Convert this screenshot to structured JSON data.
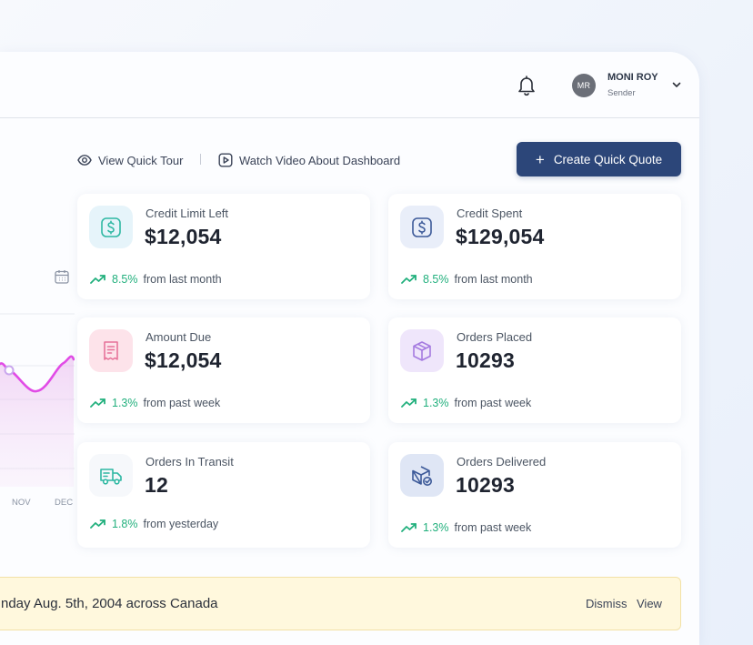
{
  "header": {
    "user": {
      "initials": "MR",
      "name": "MONI ROY",
      "role": "Sender"
    },
    "icons": {
      "notifications": "bell-icon",
      "user_menu": "chevron-down-icon"
    }
  },
  "actions": {
    "view_tour": "View Quick Tour",
    "watch_video": "Watch Video About Dashboard",
    "create_quote": "Create Quick Quote"
  },
  "cards": [
    {
      "label": "Credit Limit Left",
      "value": "$12,054",
      "pct": "8.5%",
      "period": "from last month",
      "icon": "dollar-icon"
    },
    {
      "label": "Credit Spent",
      "value": "$129,054",
      "pct": "8.5%",
      "period": "from last month",
      "icon": "dollar-icon"
    },
    {
      "label": "Amount Due",
      "value": "$12,054",
      "pct": "1.3%",
      "period": "from past week",
      "icon": "receipt-icon"
    },
    {
      "label": "Orders Placed",
      "value": "10293",
      "pct": "1.3%",
      "period": "from past week",
      "icon": "package-icon"
    },
    {
      "label": "Orders In Transit",
      "value": "12",
      "pct": "1.8%",
      "period": "from yesterday",
      "icon": "truck-icon"
    },
    {
      "label": "Orders Delivered",
      "value": "10293",
      "pct": "1.3%",
      "period": "from past week",
      "icon": "package-check-icon"
    }
  ],
  "chart": {
    "months": [
      "NOV",
      "DEC"
    ]
  },
  "banner": {
    "text": "nday Aug. 5th, 2004 across Canada",
    "dismiss": "Dismiss",
    "view": "View"
  },
  "colors": {
    "primary": "#2c4679",
    "trend_up": "#22b07d",
    "chart_line": "#e14be6",
    "banner_bg": "#fff8dd"
  }
}
